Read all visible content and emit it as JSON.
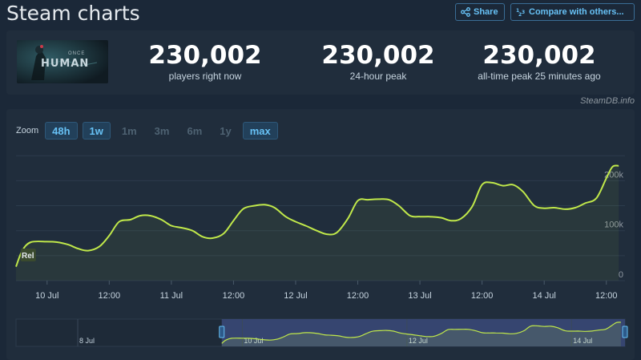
{
  "header": {
    "title": "Steam charts",
    "share_label": "Share",
    "compare_label": "Compare with others..."
  },
  "game": {
    "logo_text": "HUMAN",
    "logo_subtext": "ONCE"
  },
  "stats": [
    {
      "value": "230,002",
      "label": "players right now"
    },
    {
      "value": "230,002",
      "label": "24-hour peak"
    },
    {
      "value": "230,002",
      "label": "all-time peak 25 minutes ago"
    }
  ],
  "attribution": "SteamDB.info",
  "zoom": {
    "label": "Zoom",
    "options": [
      {
        "label": "48h",
        "active": true
      },
      {
        "label": "1w",
        "active": true
      },
      {
        "label": "1m",
        "active": false
      },
      {
        "label": "3m",
        "active": false
      },
      {
        "label": "6m",
        "active": false
      },
      {
        "label": "1y",
        "active": false
      },
      {
        "label": "max",
        "active": true
      }
    ]
  },
  "colors": {
    "background": "#1b2838",
    "panel": "#202d3c",
    "line": "#c0e84a",
    "accent": "#67c1f5",
    "navigator_window": "#3b4a7a"
  },
  "chart_data": {
    "type": "area",
    "series": [
      {
        "name": "",
        "x": [
          9.75,
          9.8,
          9.87,
          10.0,
          10.08,
          10.17,
          10.25,
          10.33,
          10.42,
          10.5,
          10.58,
          10.67,
          10.75,
          10.83,
          10.92,
          11.0,
          11.08,
          11.17,
          11.25,
          11.33,
          11.42,
          11.5,
          11.58,
          11.67,
          11.75,
          11.83,
          11.92,
          12.0,
          12.08,
          12.17,
          12.25,
          12.33,
          12.42,
          12.5,
          12.58,
          12.67,
          12.75,
          12.83,
          12.92,
          13.0,
          13.08,
          13.17,
          13.25,
          13.33,
          13.42,
          13.5,
          13.58,
          13.67,
          13.75,
          13.83,
          13.92,
          14.0,
          14.08,
          14.17,
          14.25,
          14.33,
          14.42,
          14.5,
          14.55,
          14.6
        ],
        "values": [
          28000,
          60000,
          77000,
          78000,
          77000,
          72000,
          64000,
          60000,
          68000,
          90000,
          118000,
          122000,
          130000,
          130000,
          122000,
          110000,
          106000,
          100000,
          88000,
          85000,
          94000,
          120000,
          144000,
          150000,
          152000,
          146000,
          128000,
          118000,
          110000,
          100000,
          93000,
          96000,
          124000,
          160000,
          162000,
          163000,
          162000,
          150000,
          130000,
          128000,
          128000,
          126000,
          120000,
          124000,
          148000,
          192000,
          196000,
          190000,
          192000,
          178000,
          150000,
          145000,
          146000,
          143000,
          146000,
          155000,
          165000,
          205000,
          228000,
          230000
        ]
      }
    ],
    "xlabel": "",
    "ylabel": "",
    "xlim": [
      9.75,
      14.65
    ],
    "ylim": [
      0,
      260000
    ],
    "x_ticks": [
      {
        "x": 10.0,
        "label": "10 Jul"
      },
      {
        "x": 10.5,
        "label": "12:00"
      },
      {
        "x": 11.0,
        "label": "11 Jul"
      },
      {
        "x": 11.5,
        "label": "12:00"
      },
      {
        "x": 12.0,
        "label": "12 Jul"
      },
      {
        "x": 12.5,
        "label": "12:00"
      },
      {
        "x": 13.0,
        "label": "13 Jul"
      },
      {
        "x": 13.5,
        "label": "12:00"
      },
      {
        "x": 14.0,
        "label": "14 Jul"
      },
      {
        "x": 14.5,
        "label": "12:00"
      }
    ],
    "y_ticks": [
      {
        "y": 0,
        "label": "0"
      },
      {
        "y": 100000,
        "label": "100k"
      },
      {
        "y": 200000,
        "label": "200k"
      }
    ],
    "grid": true,
    "legend": "none",
    "annotation": {
      "x": 9.8,
      "label": "Rel"
    },
    "navigator": {
      "xlim": [
        7.25,
        14.65
      ],
      "selected": [
        9.75,
        14.65
      ],
      "ticks": [
        {
          "x": 8.0,
          "label": "8 Jul"
        },
        {
          "x": 10.0,
          "label": "10 Jul"
        },
        {
          "x": 12.0,
          "label": "12 Jul"
        },
        {
          "x": 14.0,
          "label": "14 Jul"
        }
      ]
    }
  }
}
